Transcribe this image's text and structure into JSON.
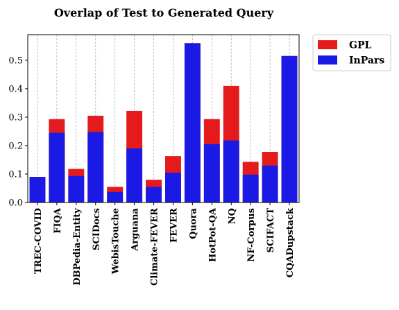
{
  "chart_data": {
    "type": "bar",
    "title": "Overlap of Test to Generated Query",
    "xlabel": "",
    "ylabel": "",
    "ylim": [
      0,
      0.59
    ],
    "yticks": [
      0.0,
      0.1,
      0.2,
      0.3,
      0.4,
      0.5
    ],
    "ytick_labels": [
      "0.0",
      "0.1",
      "0.2",
      "0.3",
      "0.4",
      "0.5"
    ],
    "grid": "vertical-dashed",
    "legend_position": "outside-top-right",
    "categories": [
      "TREC-COVID",
      "FIQA",
      "DBPedia-Entity",
      "SCIDocs",
      "WebisTouche",
      "Arguana",
      "Climate-FEVER",
      "FEVER",
      "Quora",
      "HotPot-QA",
      "NQ",
      "NF-Corpus",
      "SCIFACT",
      "CQADupstack"
    ],
    "series": [
      {
        "name": "GPL",
        "color": "#e41a1c",
        "values": [
          0.09,
          0.293,
          0.118,
          0.305,
          0.055,
          0.322,
          0.08,
          0.163,
          0.56,
          0.293,
          0.41,
          0.143,
          0.178,
          0.515
        ]
      },
      {
        "name": "InPars",
        "color": "#1a1ae4",
        "values": [
          0.09,
          0.245,
          0.093,
          0.248,
          0.037,
          0.19,
          0.055,
          0.105,
          0.56,
          0.205,
          0.218,
          0.098,
          0.13,
          0.515
        ]
      }
    ]
  }
}
